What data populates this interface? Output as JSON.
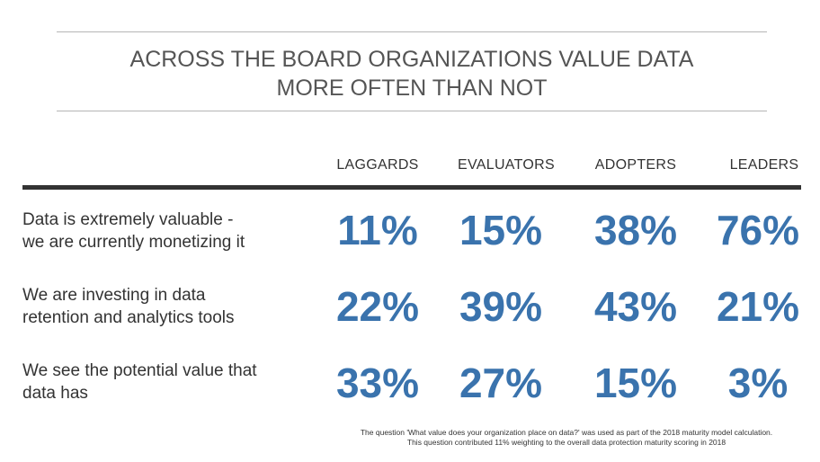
{
  "title_lines": [
    "ACROSS THE BOARD ORGANIZATIONS VALUE DATA",
    "MORE OFTEN THAN NOT"
  ],
  "colors": {
    "value": "#3a73ad",
    "text": "#333333",
    "title": "#555555"
  },
  "chart_data": {
    "type": "table",
    "title": "ACROSS THE BOARD ORGANIZATIONS VALUE DATA MORE OFTEN THAN NOT",
    "columns": [
      "LAGGARDS",
      "EVALUATORS",
      "ADOPTERS",
      "LEADERS"
    ],
    "rows": [
      {
        "label_lines": [
          "Data is extremely valuable -",
          "we are currently monetizing it"
        ],
        "values": [
          "11%",
          "15%",
          "38%",
          "76%"
        ]
      },
      {
        "label_lines": [
          "We are investing in data",
          "retention and analytics tools"
        ],
        "values": [
          "22%",
          "39%",
          "43%",
          "21%"
        ]
      },
      {
        "label_lines": [
          "We see the potential value that",
          "data has"
        ],
        "values": [
          "33%",
          "27%",
          "15%",
          "3%"
        ]
      }
    ]
  },
  "footnote_lines": [
    "The question 'What value does your organization place on data?' was used as part of the 2018 maturity model calculation.",
    "This question contributed 11% weighting to the overall data protection maturity scoring in 2018"
  ]
}
